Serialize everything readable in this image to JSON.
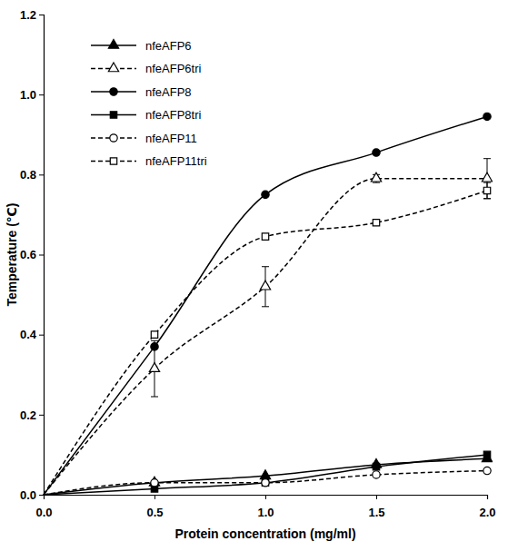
{
  "chart_data": {
    "type": "line",
    "x_label": "Protein concentration (mg/ml)",
    "y_label": "Temperature (℃)",
    "x": [
      0,
      0.5,
      1.0,
      1.5,
      2.0
    ],
    "xlim": [
      0,
      2.0
    ],
    "xticks": [
      {
        "value": 0,
        "label": "0.0"
      },
      {
        "value": 0.5,
        "label": "0.5"
      },
      {
        "value": 1.0,
        "label": "1.0"
      },
      {
        "value": 1.5,
        "label": "1.5"
      },
      {
        "value": 2.0,
        "label": "2.0"
      }
    ],
    "ylim": [
      0,
      1.2
    ],
    "yticks": [
      {
        "value": 0,
        "label": "0.0"
      },
      0.2,
      0.4,
      0.6,
      0.8,
      {
        "value": 1.0,
        "label": "1.0"
      },
      1.2
    ],
    "grid": false,
    "legend": "top-left",
    "series": [
      {
        "name": "nfeAFP6",
        "color": "#000000",
        "marker": "triangle",
        "line_style": "solid",
        "values": [
          0,
          0.03,
          0.047,
          0.075,
          0.09
        ]
      },
      {
        "name": "nfeAFP6tri",
        "color": "#000000",
        "marker": "triangle-open",
        "line_style": "dashed",
        "values": [
          0,
          0.315,
          0.52,
          0.79,
          0.79
        ],
        "errors": [
          null,
          0.07,
          0.05,
          0.01,
          0.05
        ]
      },
      {
        "name": "nfeAFP8",
        "color": "#000000",
        "marker": "circle",
        "line_style": "solid",
        "values": [
          0,
          0.37,
          0.75,
          0.855,
          0.945
        ]
      },
      {
        "name": "nfeAFP8tri",
        "color": "#000000",
        "marker": "square",
        "line_style": "solid",
        "values": [
          0,
          0.015,
          0.03,
          0.07,
          0.1
        ]
      },
      {
        "name": "nfeAFP11",
        "color": "#000000",
        "marker": "circle-open",
        "line_style": "dashed",
        "values": [
          0,
          0.03,
          0.03,
          0.05,
          0.06
        ]
      },
      {
        "name": "nfeAFP11tri",
        "color": "#000000",
        "marker": "square-open",
        "line_style": "dashed",
        "values": [
          0,
          0.4,
          0.645,
          0.68,
          0.76
        ],
        "errors": [
          null,
          null,
          null,
          null,
          0.02
        ]
      }
    ]
  }
}
